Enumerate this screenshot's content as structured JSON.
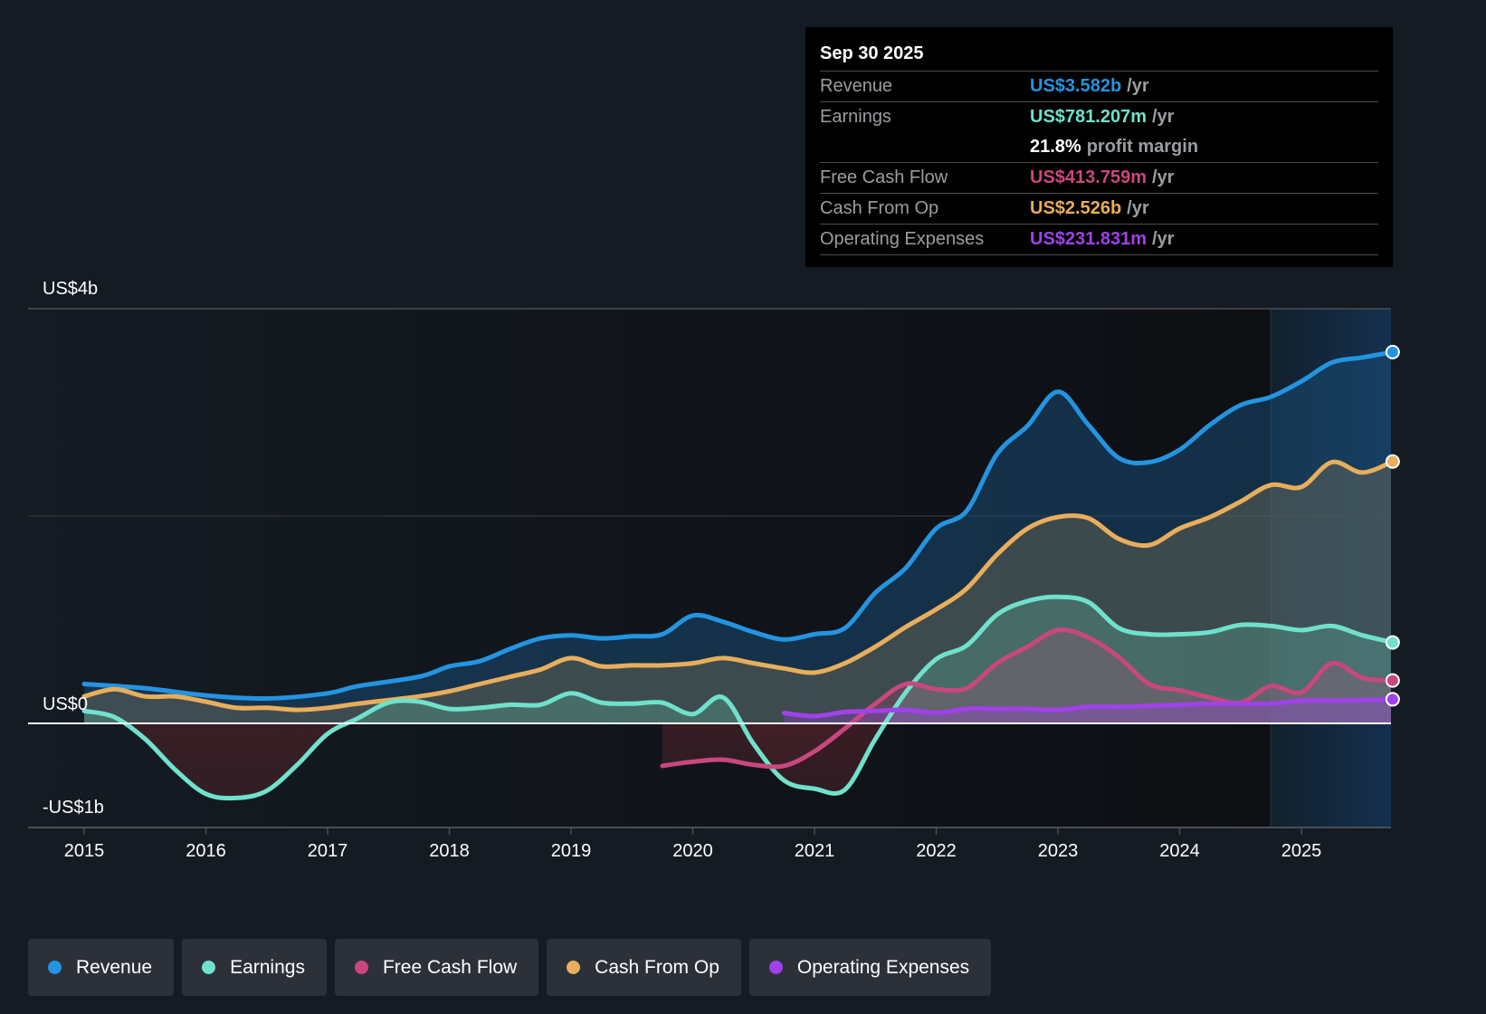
{
  "tooltip": {
    "date": "Sep 30 2025",
    "rows": [
      {
        "label": "Revenue",
        "value": "US$3.582b",
        "unit": "/yr",
        "color": "#2394e1"
      },
      {
        "label": "Earnings",
        "value": "US$781.207m",
        "unit": "/yr",
        "color": "#6fe1cc"
      },
      {
        "label": "",
        "value": "21.8%",
        "unit": "profit margin",
        "color": "#ffffff"
      },
      {
        "label": "Free Cash Flow",
        "value": "US$413.759m",
        "unit": "/yr",
        "color": "#c9477f"
      },
      {
        "label": "Cash From Op",
        "value": "US$2.526b",
        "unit": "/yr",
        "color": "#e8ae5c"
      },
      {
        "label": "Operating Expenses",
        "value": "US$231.831m",
        "unit": "/yr",
        "color": "#a041ea"
      }
    ]
  },
  "legend": [
    {
      "label": "Revenue",
      "color": "#2394e1"
    },
    {
      "label": "Earnings",
      "color": "#6fe1cc"
    },
    {
      "label": "Free Cash Flow",
      "color": "#c9477f"
    },
    {
      "label": "Cash From Op",
      "color": "#e8ae5c"
    },
    {
      "label": "Operating Expenses",
      "color": "#a041ea"
    }
  ],
  "chart_data": {
    "type": "area",
    "title": "",
    "xlabel": "",
    "ylabel": "",
    "y_tick_labels": [
      {
        "value": 4,
        "label": "US$4b"
      },
      {
        "value": 0,
        "label": "US$0"
      },
      {
        "value": -1,
        "label": "-US$1b"
      }
    ],
    "ylim": [
      -1,
      4
    ],
    "xlim": [
      2014.55,
      2025.75
    ],
    "x_ticks": [
      2015,
      2016,
      2017,
      2018,
      2019,
      2020,
      2021,
      2022,
      2023,
      2024,
      2025
    ],
    "gridlines": [
      4,
      2,
      0
    ],
    "forecast_shade_from": 2024.75,
    "units": "US$ billions",
    "series": [
      {
        "name": "Revenue",
        "color": "#2394e1",
        "x": [
          2015.0,
          2015.5,
          2016.0,
          2016.5,
          2017.0,
          2017.25,
          2017.75,
          2018.0,
          2018.25,
          2018.5,
          2018.75,
          2019.0,
          2019.25,
          2019.5,
          2019.75,
          2020.0,
          2020.25,
          2020.5,
          2020.75,
          2021.0,
          2021.25,
          2021.5,
          2021.75,
          2022.0,
          2022.25,
          2022.5,
          2022.75,
          2023.0,
          2023.25,
          2023.5,
          2023.75,
          2024.0,
          2024.25,
          2024.5,
          2024.75,
          2025.0,
          2025.25,
          2025.5,
          2025.75
        ],
        "values": [
          0.38,
          0.34,
          0.27,
          0.24,
          0.29,
          0.36,
          0.45,
          0.55,
          0.6,
          0.72,
          0.82,
          0.85,
          0.82,
          0.84,
          0.86,
          1.04,
          0.98,
          0.88,
          0.81,
          0.86,
          0.92,
          1.26,
          1.5,
          1.88,
          2.05,
          2.6,
          2.87,
          3.2,
          2.88,
          2.56,
          2.52,
          2.64,
          2.88,
          3.07,
          3.15,
          3.3,
          3.48,
          3.53,
          3.582
        ]
      },
      {
        "name": "Cash From Op",
        "color": "#e8ae5c",
        "x": [
          2015.0,
          2015.25,
          2015.5,
          2015.75,
          2016.0,
          2016.25,
          2016.5,
          2016.75,
          2017.0,
          2017.25,
          2017.75,
          2018.0,
          2018.25,
          2018.5,
          2018.75,
          2019.0,
          2019.25,
          2019.5,
          2019.75,
          2020.0,
          2020.25,
          2020.5,
          2020.75,
          2021.0,
          2021.25,
          2021.5,
          2021.75,
          2022.0,
          2022.25,
          2022.5,
          2022.75,
          2023.0,
          2023.25,
          2023.5,
          2023.75,
          2024.0,
          2024.25,
          2024.5,
          2024.75,
          2025.0,
          2025.25,
          2025.5,
          2025.75
        ],
        "values": [
          0.26,
          0.33,
          0.26,
          0.26,
          0.21,
          0.15,
          0.15,
          0.13,
          0.15,
          0.19,
          0.26,
          0.31,
          0.38,
          0.45,
          0.52,
          0.63,
          0.55,
          0.56,
          0.56,
          0.58,
          0.63,
          0.58,
          0.53,
          0.49,
          0.58,
          0.74,
          0.93,
          1.1,
          1.3,
          1.63,
          1.88,
          1.99,
          1.98,
          1.78,
          1.72,
          1.88,
          1.99,
          2.14,
          2.3,
          2.28,
          2.52,
          2.42,
          2.526
        ]
      },
      {
        "name": "Earnings",
        "color": "#6fe1cc",
        "x": [
          2015.0,
          2015.25,
          2015.5,
          2015.75,
          2016.0,
          2016.25,
          2016.5,
          2016.75,
          2017.0,
          2017.25,
          2017.5,
          2017.75,
          2018.0,
          2018.25,
          2018.5,
          2018.75,
          2019.0,
          2019.25,
          2019.5,
          2019.75,
          2020.0,
          2020.25,
          2020.5,
          2020.75,
          2021.0,
          2021.25,
          2021.5,
          2021.75,
          2022.0,
          2022.25,
          2022.5,
          2022.75,
          2023.0,
          2023.25,
          2023.5,
          2023.75,
          2024.0,
          2024.25,
          2024.5,
          2024.75,
          2025.0,
          2025.25,
          2025.5,
          2025.75
        ],
        "values": [
          0.12,
          0.06,
          -0.15,
          -0.45,
          -0.68,
          -0.72,
          -0.65,
          -0.4,
          -0.1,
          0.05,
          0.2,
          0.21,
          0.14,
          0.15,
          0.18,
          0.18,
          0.29,
          0.2,
          0.19,
          0.2,
          0.09,
          0.25,
          -0.2,
          -0.55,
          -0.63,
          -0.64,
          -0.15,
          0.3,
          0.62,
          0.75,
          1.05,
          1.18,
          1.22,
          1.17,
          0.92,
          0.86,
          0.86,
          0.88,
          0.95,
          0.94,
          0.9,
          0.94,
          0.85,
          0.781
        ]
      },
      {
        "name": "Free Cash Flow",
        "color": "#c9477f",
        "x": [
          2019.75,
          2020.0,
          2020.25,
          2020.5,
          2020.75,
          2021.0,
          2021.25,
          2021.5,
          2021.75,
          2022.0,
          2022.25,
          2022.5,
          2022.75,
          2023.0,
          2023.25,
          2023.5,
          2023.75,
          2024.0,
          2024.25,
          2024.5,
          2024.75,
          2025.0,
          2025.25,
          2025.5,
          2025.75
        ],
        "values": [
          -0.41,
          -0.37,
          -0.35,
          -0.4,
          -0.41,
          -0.27,
          -0.05,
          0.19,
          0.38,
          0.33,
          0.34,
          0.58,
          0.74,
          0.9,
          0.83,
          0.64,
          0.38,
          0.32,
          0.25,
          0.2,
          0.36,
          0.3,
          0.58,
          0.44,
          0.414
        ]
      },
      {
        "name": "Operating Expenses",
        "color": "#a041ea",
        "x": [
          2020.75,
          2021.0,
          2021.25,
          2021.5,
          2021.75,
          2022.0,
          2022.25,
          2022.5,
          2022.75,
          2023.0,
          2023.25,
          2023.5,
          2023.75,
          2024.0,
          2024.25,
          2024.5,
          2024.75,
          2025.0,
          2025.25,
          2025.5,
          2025.75
        ],
        "values": [
          0.1,
          0.07,
          0.11,
          0.12,
          0.13,
          0.1,
          0.14,
          0.14,
          0.14,
          0.13,
          0.16,
          0.16,
          0.17,
          0.18,
          0.19,
          0.19,
          0.19,
          0.22,
          0.22,
          0.225,
          0.232
        ]
      }
    ]
  }
}
